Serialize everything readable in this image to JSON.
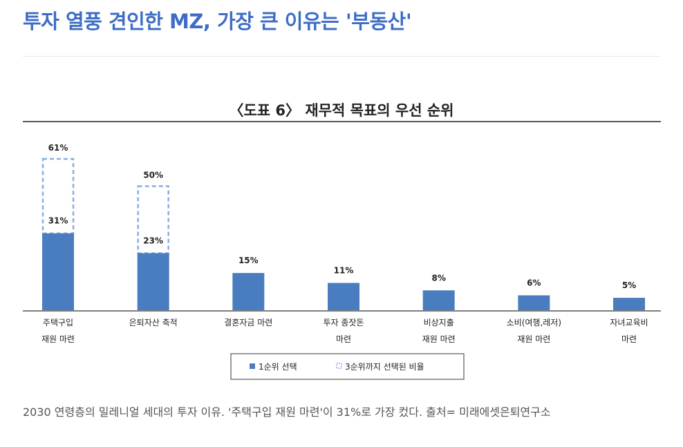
{
  "article": {
    "headline": "투자 열풍 견인한 MZ, 가장 큰 이유는 '부동산'",
    "caption": "2030 연령층의 밀레니얼 세대의 투자 이유. '주택구입 재원 마련'이 31%로 가장 컸다. 출처= 미래에셋은퇴연구소"
  },
  "chart_data": {
    "type": "bar",
    "title": "〈도표 6〉 재무적 목표의 우선 순위",
    "categories": [
      [
        "주택구입",
        "재원 마련"
      ],
      [
        "은퇴자산 축적"
      ],
      [
        "결혼자금 마련"
      ],
      [
        "투자 종잣돈",
        "마련"
      ],
      [
        "비상지출",
        "재원 마련"
      ],
      [
        "소비(여행,레저)",
        "재원 마련"
      ],
      [
        "자녀교육비",
        "마련"
      ]
    ],
    "series": [
      {
        "name": "1순위 선택",
        "values": [
          31,
          23,
          15,
          11,
          8,
          6,
          5
        ],
        "labels": [
          "31%",
          "23%",
          "15%",
          "11%",
          "8%",
          "6%",
          "5%"
        ],
        "style": "solid"
      },
      {
        "name": "3순위까지 선택된 비율",
        "values": [
          61,
          50,
          null,
          null,
          null,
          null,
          null
        ],
        "labels": [
          "61%",
          "50%",
          null,
          null,
          null,
          null,
          null
        ],
        "style": "dashed"
      }
    ],
    "ylim": [
      0,
      61
    ],
    "legend": "bottom-center",
    "colors": {
      "bar": "#4a7dc0",
      "dashed": "#8aaee0",
      "axis": "#555555",
      "text": "#222222"
    }
  }
}
